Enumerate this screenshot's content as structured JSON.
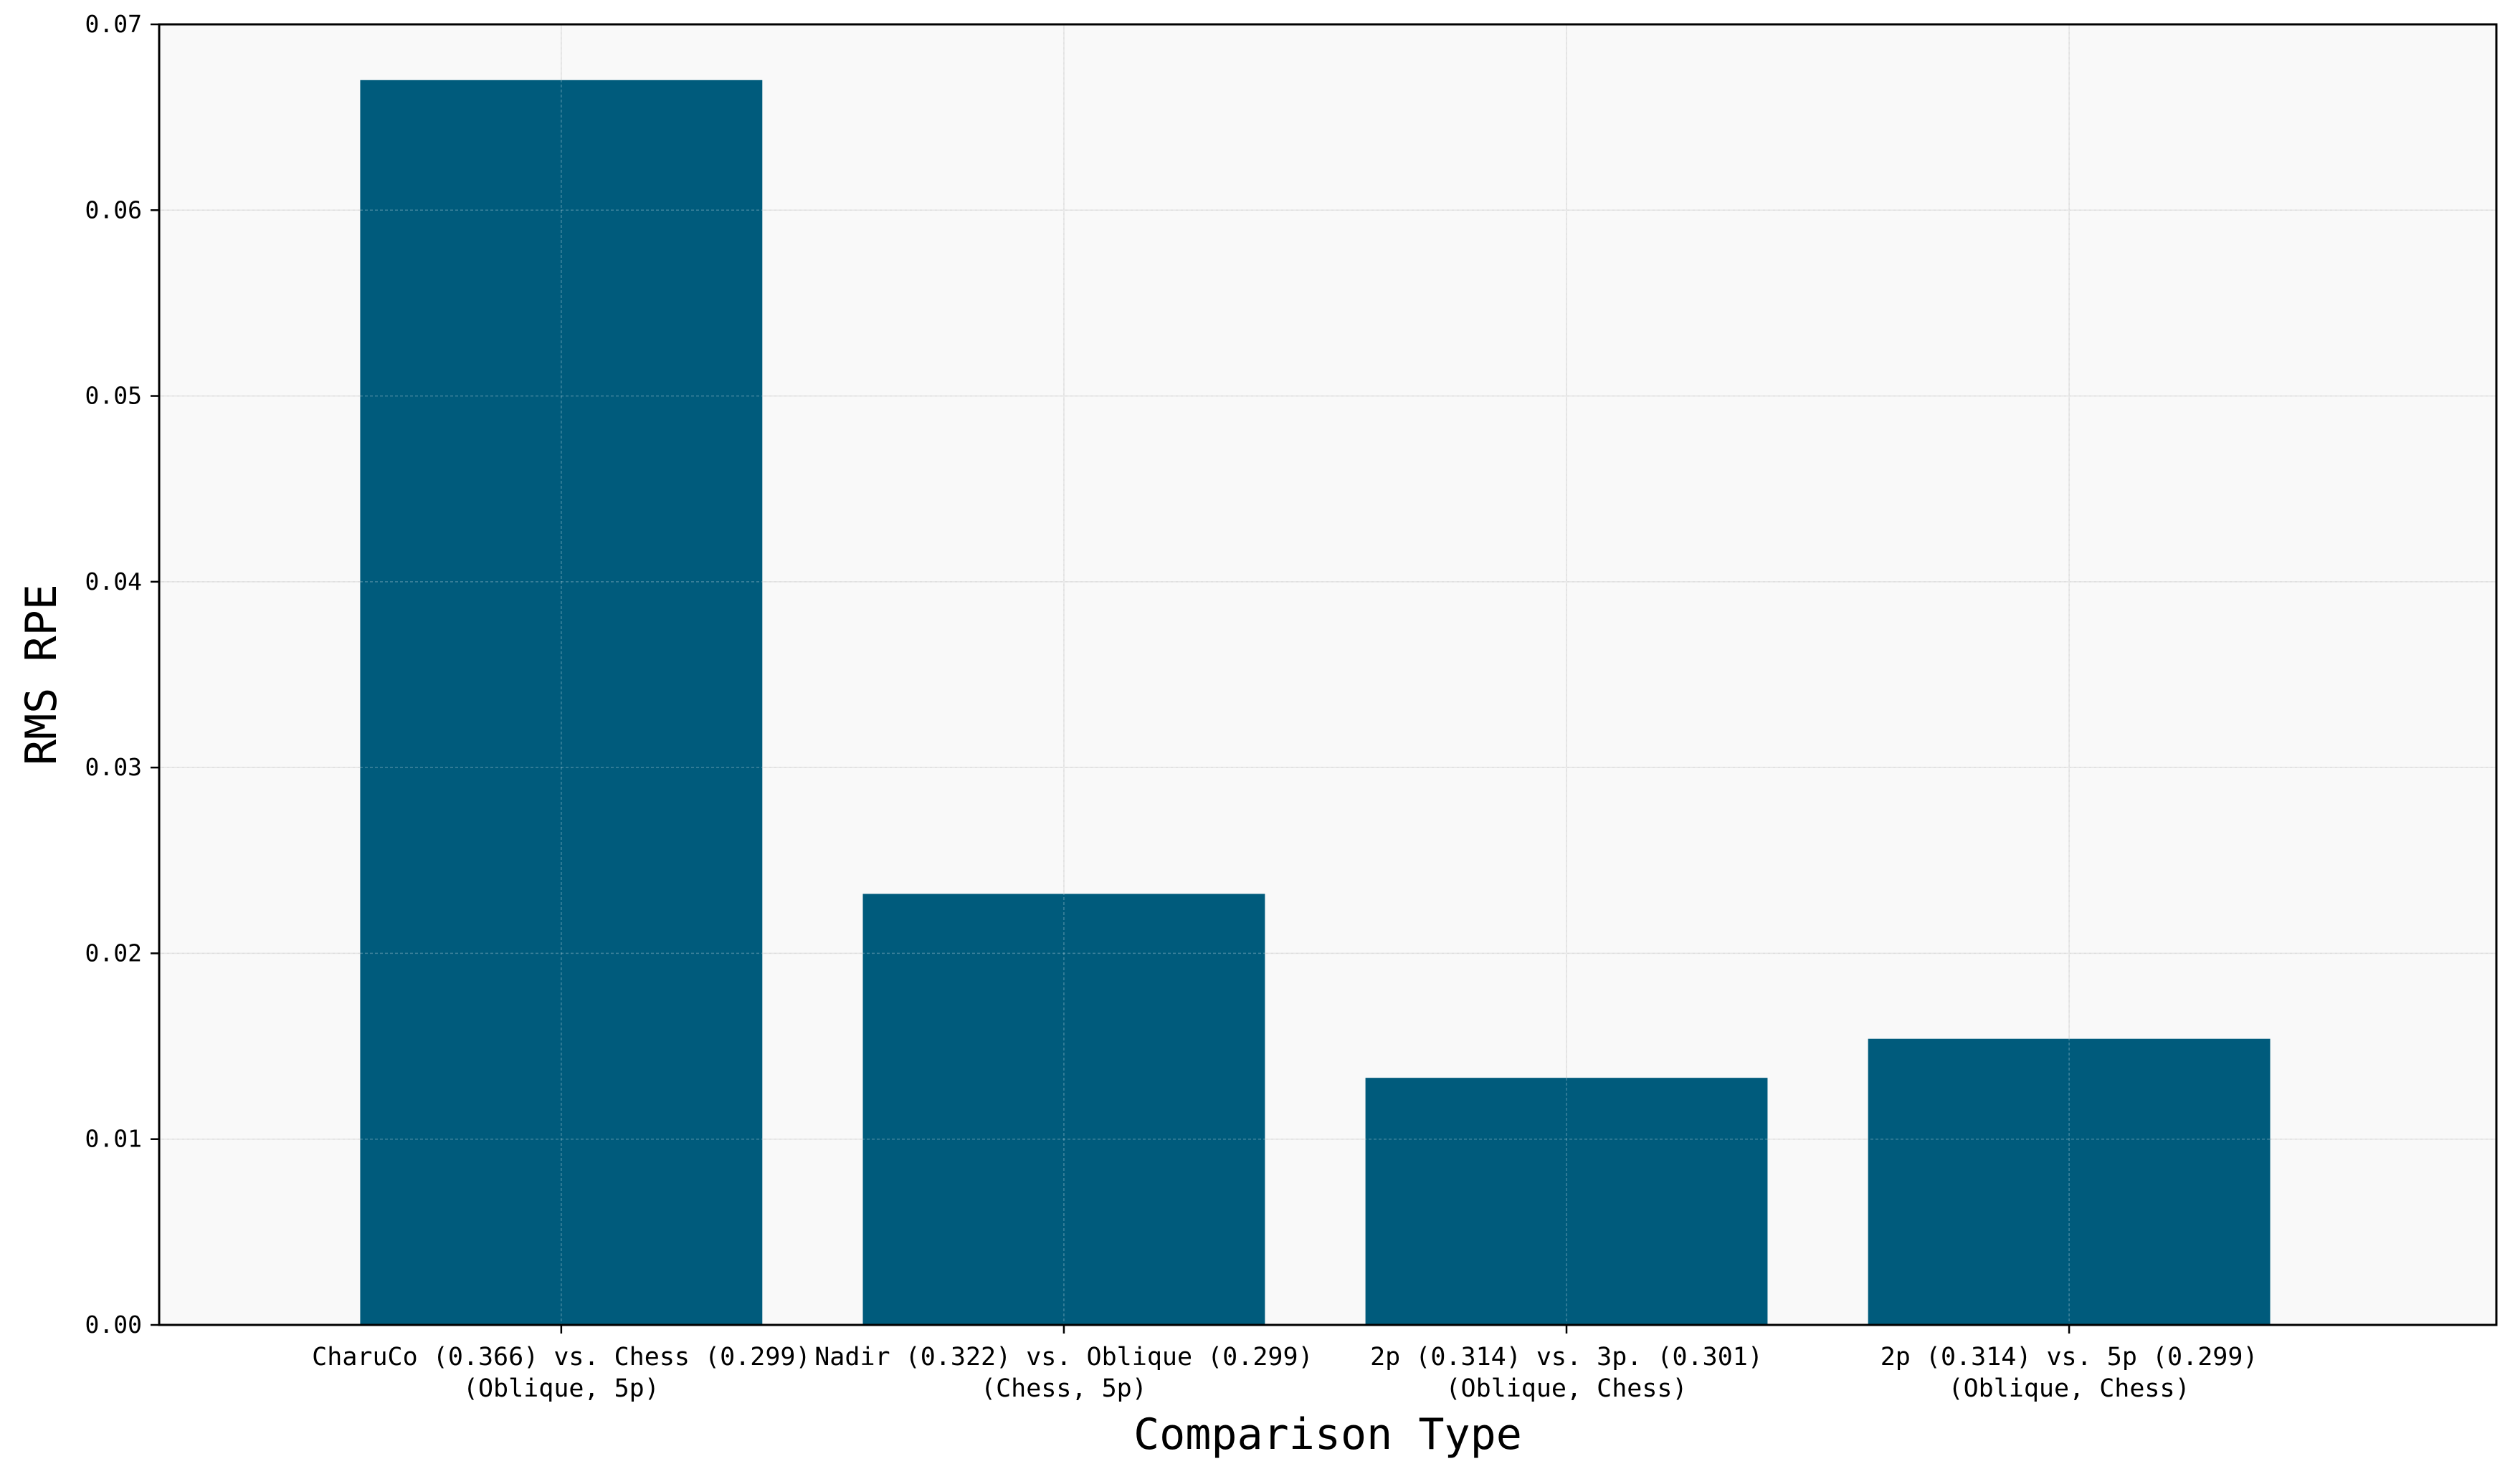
{
  "chart_data": {
    "type": "bar",
    "title": "",
    "xlabel": "Comparison Type",
    "ylabel": "RMS RPE",
    "categories": [
      [
        "CharuCo (0.366) vs. Chess (0.299)",
        "(Oblique, 5p)"
      ],
      [
        "Nadir (0.322) vs. Oblique (0.299)",
        "(Chess, 5p)"
      ],
      [
        "2p (0.314) vs. 3p. (0.301)",
        "(Oblique, Chess)"
      ],
      [
        "2p (0.314) vs. 5p (0.299)",
        "(Oblique, Chess)"
      ]
    ],
    "values": [
      0.067,
      0.0232,
      0.0133,
      0.0154
    ],
    "ylim": [
      0,
      0.07
    ],
    "yticks": [
      "0.00",
      "0.01",
      "0.02",
      "0.03",
      "0.04",
      "0.05",
      "0.06",
      "0.07"
    ],
    "grid": true,
    "colors": {
      "bar": "#005b7c",
      "plot_background": "#f9f9f9",
      "grid": "#dcdcdc",
      "axes": "#000000"
    }
  }
}
